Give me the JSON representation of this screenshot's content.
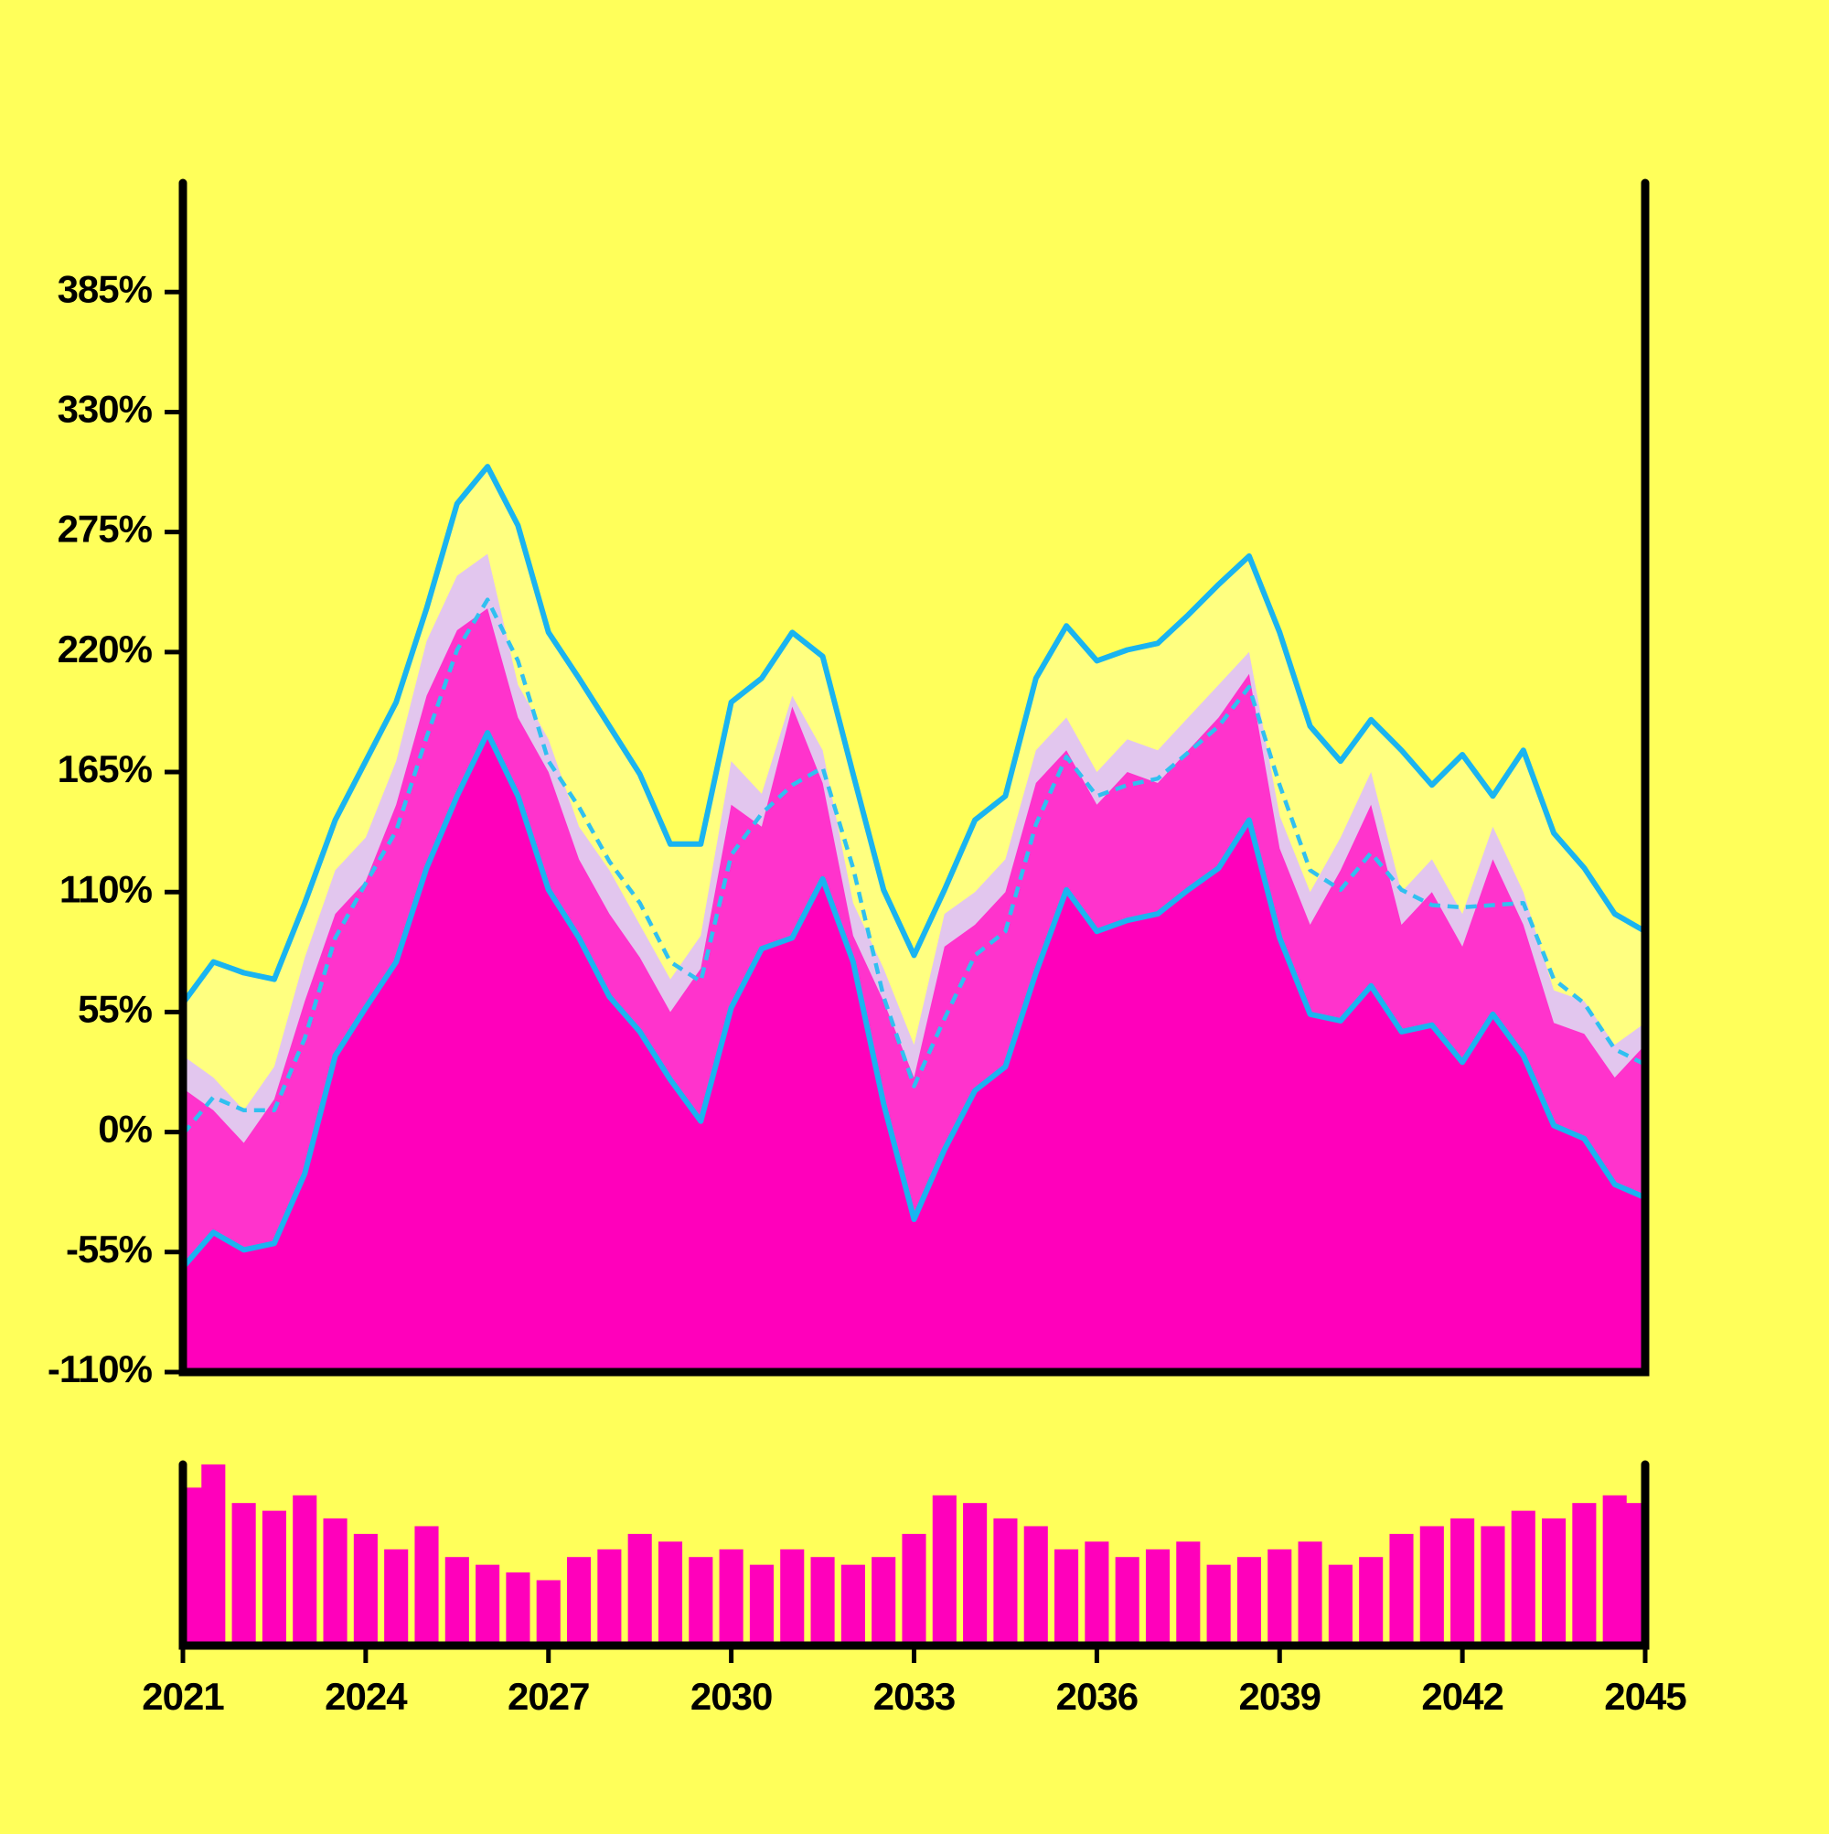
{
  "chart_data": [
    {
      "type": "area",
      "x": [
        2021,
        2021.5,
        2022,
        2022.5,
        2023,
        2023.5,
        2024,
        2024.5,
        2025,
        2025.5,
        2026,
        2026.5,
        2027,
        2027.5,
        2028,
        2028.5,
        2029,
        2029.5,
        2030,
        2030.5,
        2031,
        2031.5,
        2032,
        2032.5,
        2033,
        2033.5,
        2034,
        2034.5,
        2035,
        2035.5,
        2036,
        2036.5,
        2037,
        2037.5,
        2038,
        2038.5,
        2039,
        2039.5,
        2040,
        2040.5,
        2041,
        2041.5,
        2042,
        2042.5,
        2043,
        2043.5,
        2044,
        2044.5,
        2045
      ],
      "xlim": [
        2021,
        2045
      ],
      "ylim": [
        -110,
        435
      ],
      "yticks": [
        {
          "value": -110,
          "label": "-110%"
        },
        {
          "value": -55,
          "label": "-55%"
        },
        {
          "value": 0,
          "label": "0%"
        },
        {
          "value": 55,
          "label": "55%"
        },
        {
          "value": 110,
          "label": "110%"
        },
        {
          "value": 165,
          "label": "165%"
        },
        {
          "value": 220,
          "label": "220%"
        },
        {
          "value": 275,
          "label": "275%"
        },
        {
          "value": 330,
          "label": "330%"
        },
        {
          "value": 385,
          "label": "385%"
        }
      ],
      "series": [
        {
          "color": "#ffff80",
          "filled": true,
          "dashed": false,
          "values": [
            59,
            78,
            73,
            70,
            105,
            143,
            170,
            197,
            240,
            288,
            305,
            278,
            229,
            208,
            186,
            164,
            132,
            132,
            197,
            208,
            229,
            218,
            164,
            111,
            81,
            111,
            143,
            154,
            208,
            232,
            216,
            221,
            224,
            237,
            251,
            264,
            229,
            186,
            170,
            189,
            175,
            159,
            173,
            154,
            175,
            137,
            121,
            100,
            92
          ]
        },
        {
          "color": "#e2c6ee",
          "filled": true,
          "dashed": false,
          "values": [
            35,
            25,
            10,
            30,
            80,
            120,
            135,
            170,
            225,
            255,
            265,
            205,
            180,
            140,
            120,
            95,
            70,
            90,
            170,
            155,
            200,
            175,
            105,
            75,
            40,
            100,
            110,
            125,
            175,
            190,
            165,
            180,
            175,
            190,
            205,
            220,
            145,
            110,
            135,
            165,
            110,
            125,
            100,
            140,
            110,
            65,
            60,
            40,
            50
          ]
        },
        {
          "color": "#ff33cc",
          "filled": true,
          "dashed": false,
          "values": [
            20,
            10,
            -5,
            15,
            60,
            100,
            115,
            150,
            200,
            230,
            240,
            190,
            165,
            125,
            100,
            80,
            55,
            75,
            150,
            140,
            195,
            160,
            90,
            60,
            25,
            85,
            95,
            110,
            160,
            175,
            150,
            165,
            160,
            175,
            190,
            210,
            130,
            95,
            120,
            150,
            95,
            110,
            85,
            125,
            95,
            50,
            45,
            25,
            40
          ]
        },
        {
          "color": "#ff00bb",
          "filled": true,
          "dashed": false,
          "values": [
            -62,
            -46,
            -54,
            -51,
            -19,
            35,
            57,
            78,
            121,
            154,
            183,
            154,
            111,
            89,
            62,
            46,
            24,
            5,
            57,
            84,
            89,
            116,
            78,
            13,
            -40,
            -8,
            19,
            30,
            73,
            111,
            92,
            97,
            100,
            111,
            121,
            143,
            89,
            54,
            51,
            67,
            46,
            49,
            32,
            54,
            35,
            3,
            -3,
            -24,
            -30
          ]
        },
        {
          "color": "#1ab4f0",
          "filled": false,
          "dashed": false,
          "values": [
            59,
            78,
            73,
            70,
            105,
            143,
            170,
            197,
            240,
            288,
            305,
            278,
            229,
            208,
            186,
            164,
            132,
            132,
            197,
            208,
            229,
            218,
            164,
            111,
            81,
            111,
            143,
            154,
            208,
            232,
            216,
            221,
            224,
            237,
            251,
            264,
            229,
            186,
            170,
            189,
            175,
            159,
            173,
            154,
            175,
            137,
            121,
            100,
            92
          ]
        },
        {
          "color": "#30c0f0",
          "filled": false,
          "dashed": true,
          "values": [
            -1,
            16,
            10,
            10,
            43,
            89,
            114,
            138,
            181,
            221,
            244,
            216,
            170,
            149,
            124,
            105,
            78,
            69,
            127,
            146,
            159,
            167,
            121,
            62,
            21,
            52,
            81,
            92,
            141,
            172,
            154,
            159,
            162,
            174,
            186,
            204,
            159,
            120,
            111,
            128,
            111,
            104,
            103,
            104,
            105,
            70,
            59,
            38,
            31
          ]
        },
        {
          "color": "#1ab4f0",
          "filled": false,
          "dashed": false,
          "values": [
            -62,
            -46,
            -54,
            -51,
            -19,
            35,
            57,
            78,
            121,
            154,
            183,
            154,
            111,
            89,
            62,
            46,
            24,
            5,
            57,
            84,
            89,
            116,
            78,
            13,
            -40,
            -8,
            19,
            30,
            73,
            111,
            92,
            97,
            100,
            111,
            121,
            143,
            89,
            54,
            51,
            67,
            46,
            49,
            32,
            54,
            35,
            3,
            -3,
            -24,
            -30
          ]
        }
      ]
    },
    {
      "type": "bar",
      "x": [
        2021,
        2021.5,
        2022,
        2022.5,
        2023,
        2023.5,
        2024,
        2024.5,
        2025,
        2025.5,
        2026,
        2026.5,
        2027,
        2027.5,
        2028,
        2028.5,
        2029,
        2029.5,
        2030,
        2030.5,
        2031,
        2031.5,
        2032,
        2032.5,
        2033,
        2033.5,
        2034,
        2034.5,
        2035,
        2035.5,
        2036,
        2036.5,
        2037,
        2037.5,
        2038,
        2038.5,
        2039,
        2039.5,
        2040,
        2040.5,
        2041,
        2041.5,
        2042,
        2042.5,
        2043,
        2043.5,
        2044,
        2044.5,
        2045
      ],
      "xlim": [
        2021,
        2045
      ],
      "xticks": [
        2021,
        2024,
        2027,
        2030,
        2033,
        2036,
        2039,
        2042,
        2045
      ],
      "color": "#ff00bb",
      "values": [
        100,
        115,
        90,
        85,
        95,
        80,
        70,
        60,
        75,
        55,
        50,
        45,
        40,
        55,
        60,
        70,
        65,
        55,
        60,
        50,
        60,
        55,
        50,
        55,
        70,
        95,
        90,
        80,
        75,
        60,
        65,
        55,
        60,
        65,
        50,
        55,
        60,
        65,
        50,
        55,
        70,
        75,
        80,
        75,
        85,
        80,
        90,
        95,
        90
      ]
    }
  ]
}
